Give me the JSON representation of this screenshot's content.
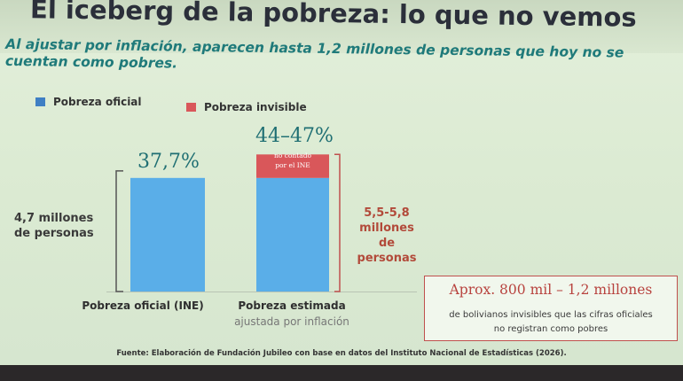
{
  "slide": {
    "title": "El iceberg de la pobreza: lo que no vemos",
    "subtitle": "Al ajustar por inflación, aparecen hasta 1,2 millones de personas que hoy no se cuentan como pobres.",
    "source": "Fuente: Elaboración de Fundación Jubileo con base en datos del Instituto Nacional de Estadísticas (2026)."
  },
  "legend": [
    {
      "label": "Pobreza oficial",
      "color": "#3f7fc4"
    },
    {
      "label": "Pobreza invisible",
      "color": "#d9575a"
    }
  ],
  "chart_data": {
    "type": "bar",
    "stacked": true,
    "categories": [
      "Pobreza oficial (INE)",
      "Pobreza estimada"
    ],
    "category_notes": [
      "",
      "ajustada por inflación"
    ],
    "series": [
      {
        "name": "Pobreza oficial",
        "color": "#5aaee8",
        "values": [
          37.7,
          37.7
        ]
      },
      {
        "name": "Pobreza invisible",
        "color": "#d9575a",
        "values": [
          0,
          7.8
        ]
      }
    ],
    "value_labels": [
      "37,7%",
      "44–47%"
    ],
    "inside_note": "no contado\npor el INE",
    "ylim": [
      0,
      50
    ],
    "left_annotation": "4,7 millones\nde personas",
    "right_annotation": "5,5-5,8\nmillones de\npersonas",
    "grid": false
  },
  "callout": {
    "title": "Aprox. 800 mil – 1,2 millones",
    "body": "de bolivianos invisibles que las cifras oficiales\nno registran como pobres"
  }
}
